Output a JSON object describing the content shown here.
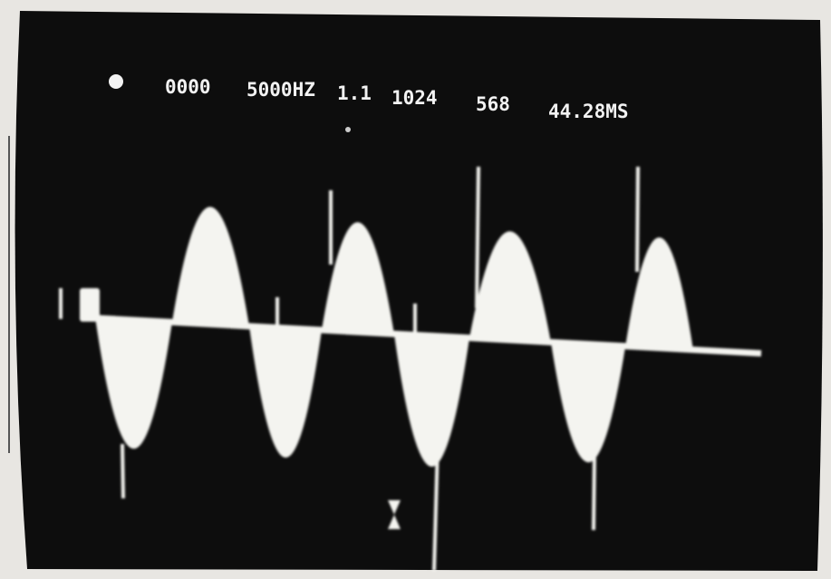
{
  "screen": {
    "status_line": [
      "0000",
      "5000HZ",
      "1.1",
      "1024",
      "568",
      "44.28MS"
    ]
  }
}
